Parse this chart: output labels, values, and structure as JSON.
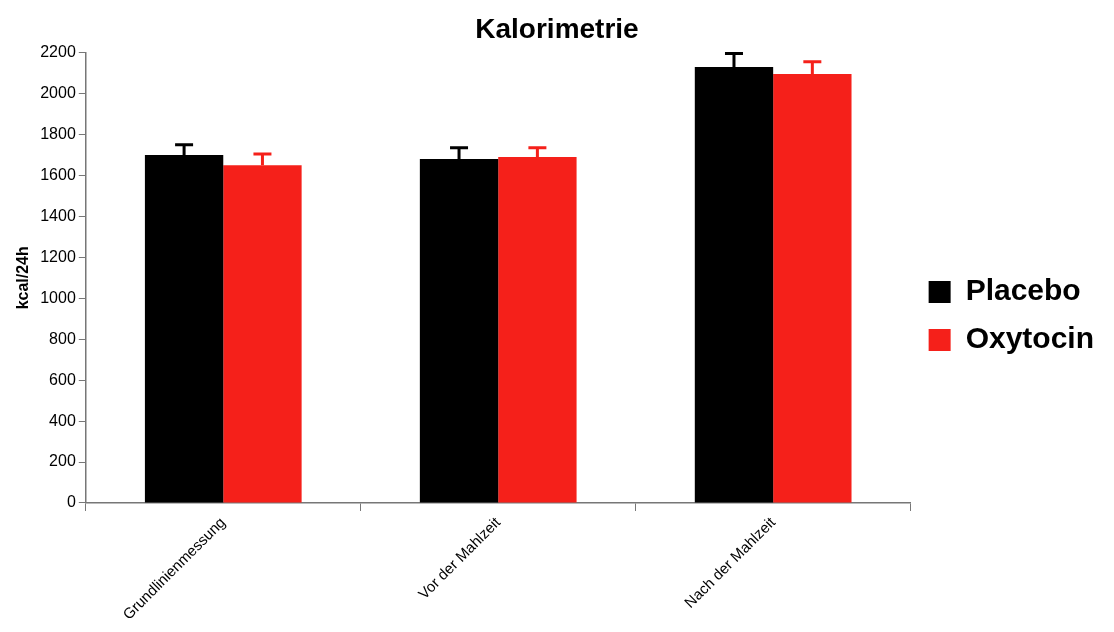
{
  "chart_data": {
    "type": "bar",
    "title": "Kalorimetrie",
    "ylabel": "kcal/24h",
    "categories": [
      "Grundlinienmessung",
      "Vor der Mahlzeit",
      "Nach der Mahlzeit"
    ],
    "series": [
      {
        "name": "Placebo",
        "color": "#000000",
        "values": [
          1700,
          1680,
          2130
        ],
        "errors": [
          [
            1700,
            1750
          ],
          [
            1680,
            1735
          ],
          [
            2130,
            2195
          ]
        ]
      },
      {
        "name": "Oxytocin",
        "color": "#f5201a",
        "values": [
          1650,
          1690,
          2095
        ],
        "errors": [
          [
            1650,
            1705
          ],
          [
            1690,
            1735
          ],
          [
            2095,
            2155
          ]
        ]
      }
    ],
    "ylim": [
      0,
      2200
    ],
    "yticks": [
      0,
      200,
      400,
      600,
      800,
      1000,
      1200,
      1400,
      1600,
      1800,
      2000,
      2200
    ],
    "grid": false,
    "legend": "right"
  }
}
